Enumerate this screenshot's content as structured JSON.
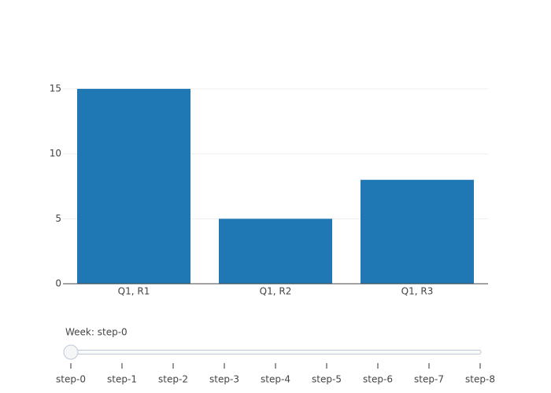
{
  "chart_data": {
    "type": "bar",
    "categories": [
      "Q1, R1",
      "Q1, R2",
      "Q1, R3"
    ],
    "values": [
      15,
      5,
      8
    ],
    "color": "#1f77b4",
    "ylim": [
      0,
      15.79
    ],
    "yticks": [
      0,
      5,
      10,
      15
    ],
    "grid": true
  },
  "slider": {
    "current_label": "Week: step-0",
    "active": 0,
    "steps": [
      "step-0",
      "step-1",
      "step-2",
      "step-3",
      "step-4",
      "step-5",
      "step-6",
      "step-7",
      "step-8"
    ]
  }
}
